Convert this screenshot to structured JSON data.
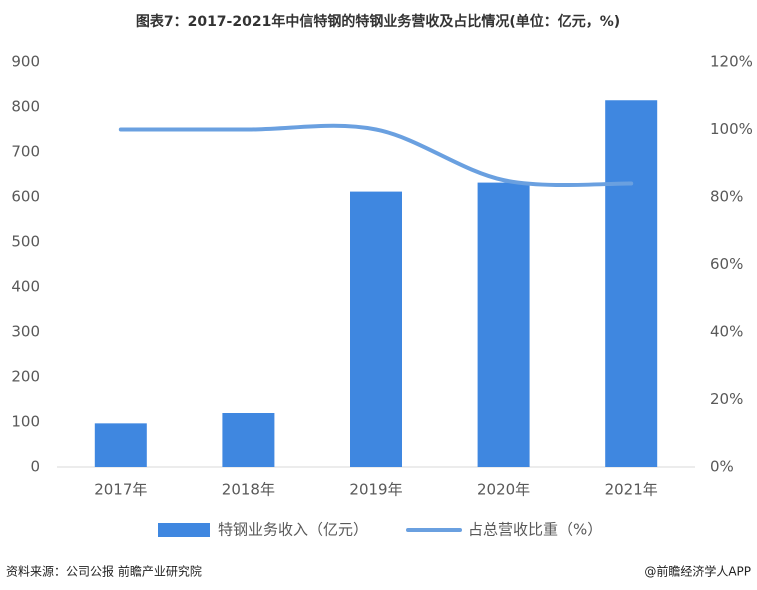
{
  "chart_data": {
    "type": "bar_line",
    "title": "图表7：2017-2021年中信特钢的特钢业务营收及占比情况(单位：亿元，%)",
    "categories": [
      "2017年",
      "2018年",
      "2019年",
      "2020年",
      "2021年"
    ],
    "series": [
      {
        "name": "特钢业务收入（亿元）",
        "color": "#3f87e0",
        "type": "bar",
        "values": [
          97,
          120,
          612,
          632,
          815
        ]
      },
      {
        "name": "占总营收比重（%）",
        "color": "#6aa0e0",
        "type": "line",
        "axis": "y2",
        "values": [
          100,
          100,
          100,
          85,
          84
        ]
      }
    ],
    "ylim": [
      0,
      900
    ],
    "yticks": [
      0,
      100,
      200,
      300,
      400,
      500,
      600,
      700,
      800,
      900
    ],
    "y2lim": [
      0,
      120
    ],
    "y2ticks": [
      {
        "value": 0,
        "label": "0%"
      },
      {
        "value": 20,
        "label": "20%"
      },
      {
        "value": 40,
        "label": "40%"
      },
      {
        "value": 60,
        "label": "60%"
      },
      {
        "value": 80,
        "label": "80%"
      },
      {
        "value": 100,
        "label": "100%"
      },
      {
        "value": 120,
        "label": "120%"
      }
    ],
    "legend": "bottom",
    "source": "资料来源：公司公报 前瞻产业研究院",
    "credit": "@前瞻经济学人APP"
  }
}
